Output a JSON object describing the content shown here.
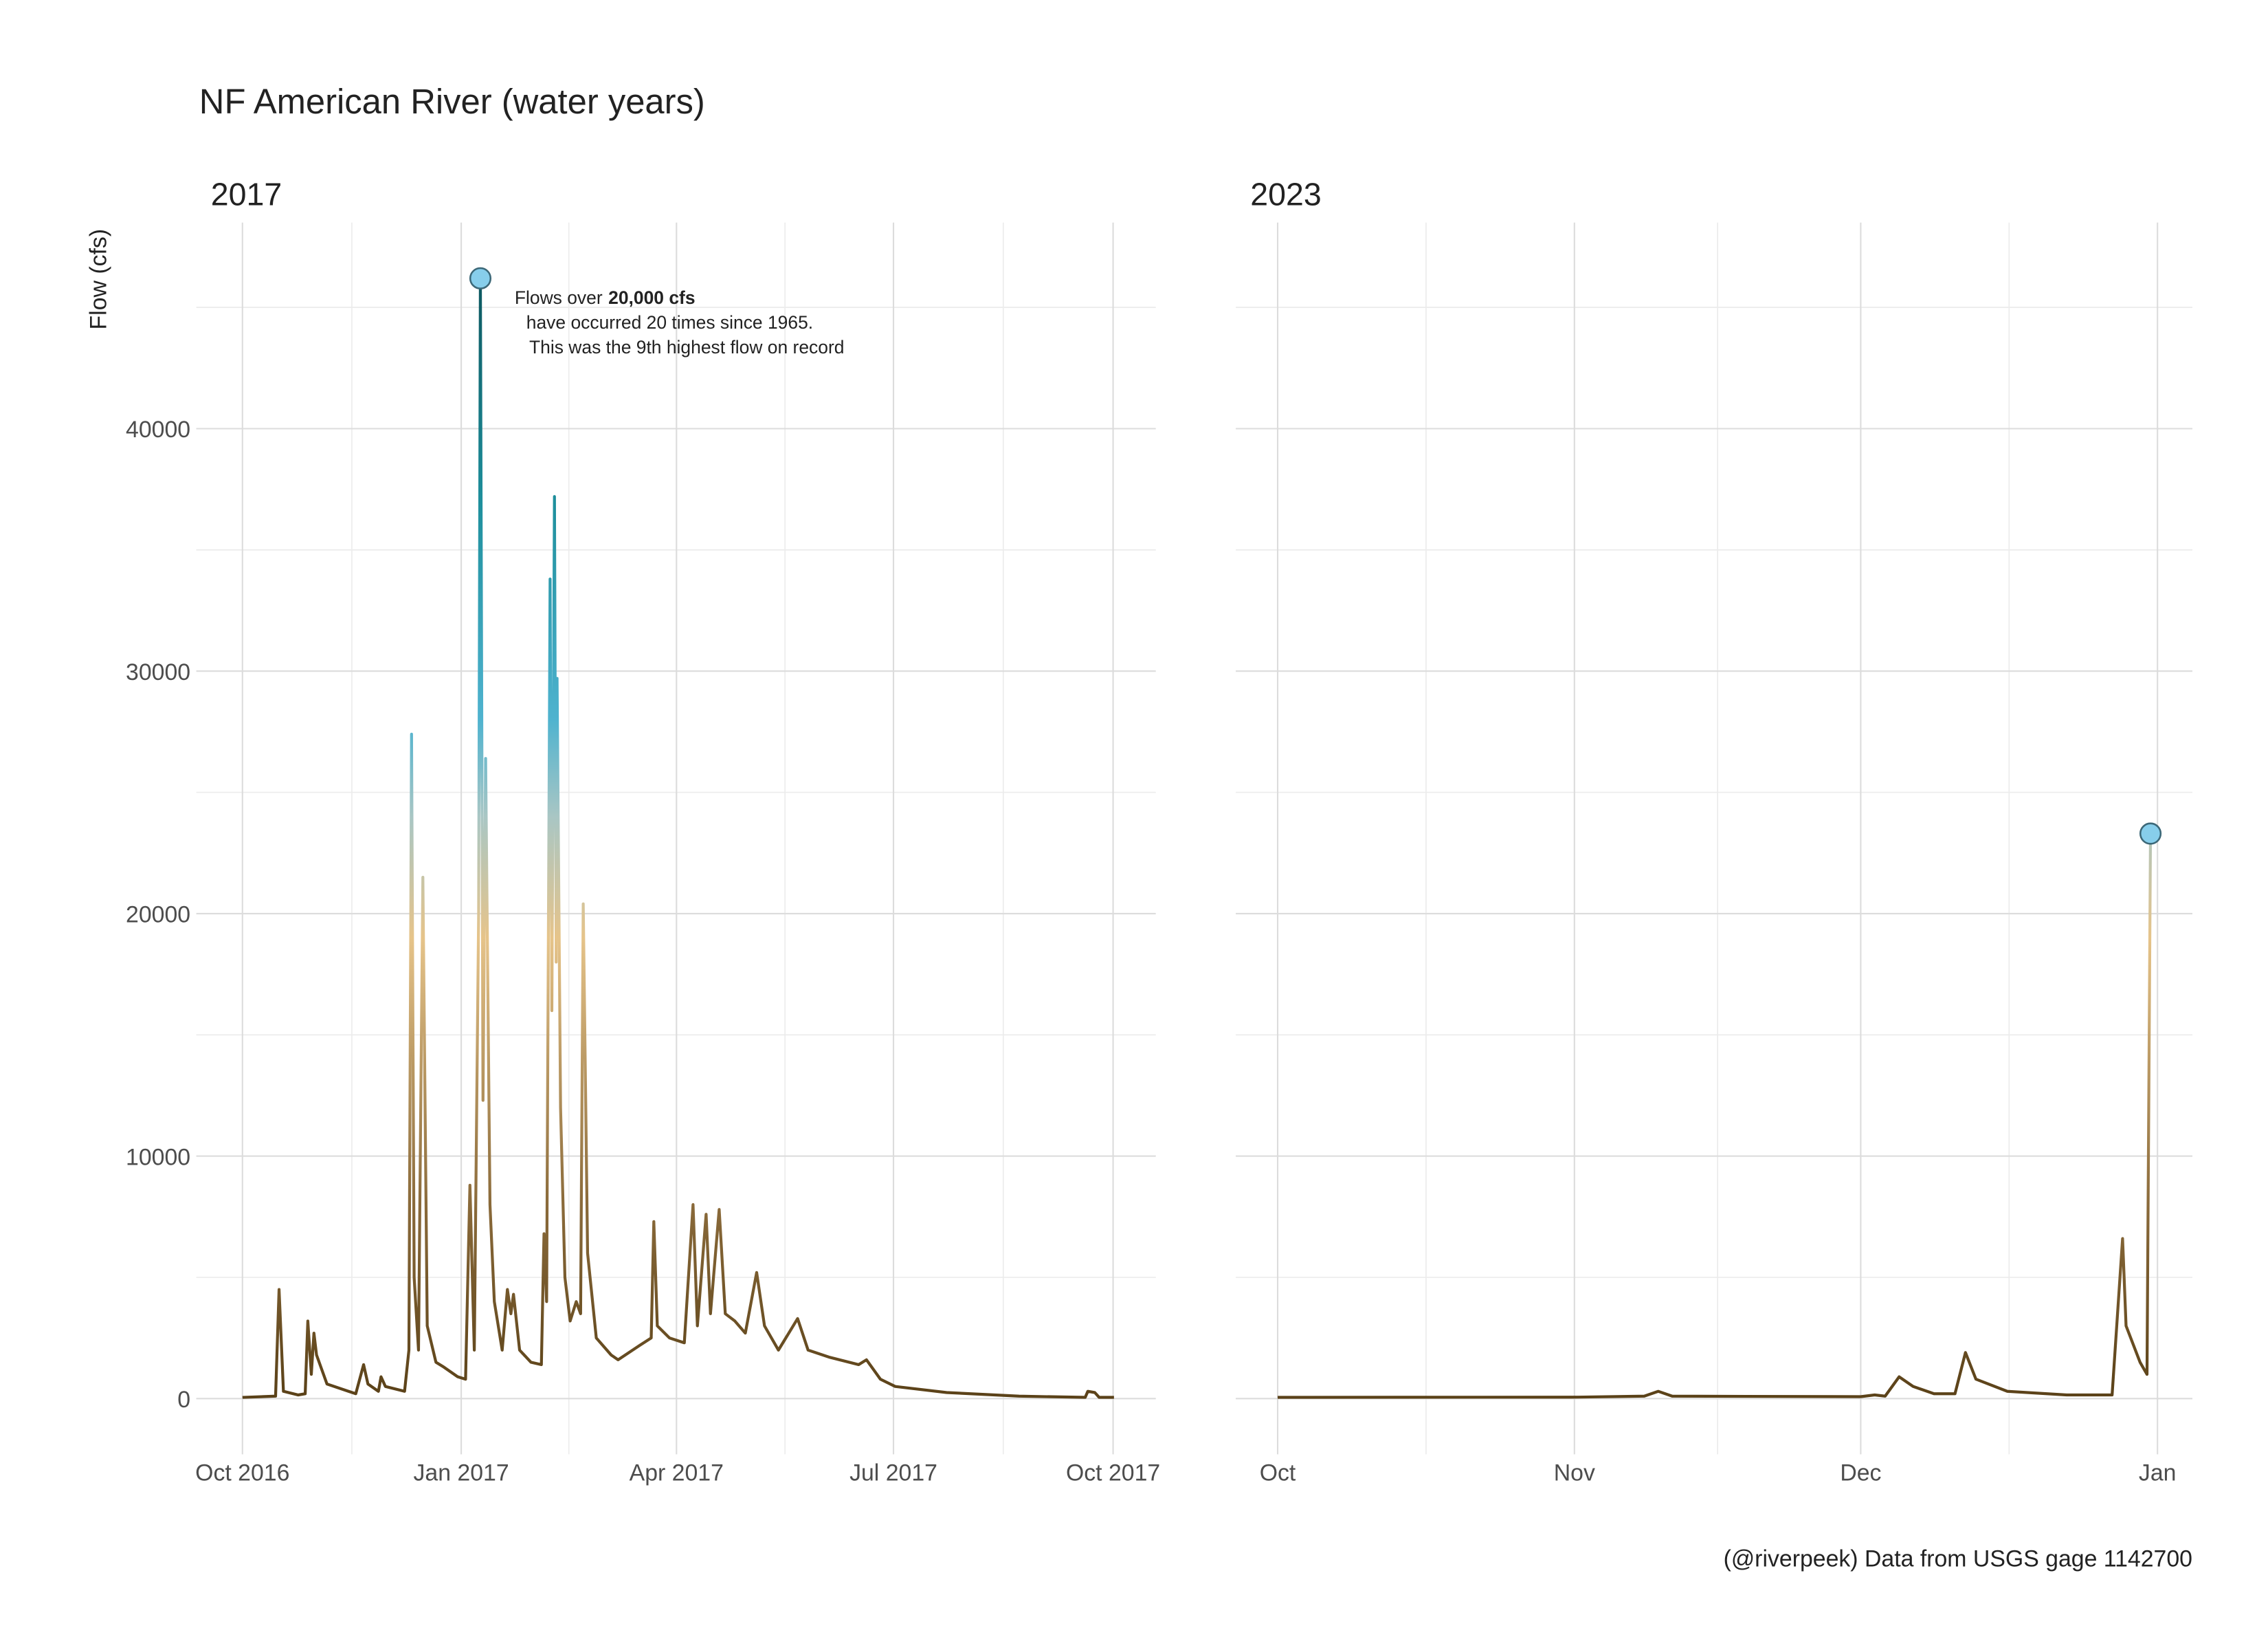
{
  "header": {
    "title": "NF American River (water years)",
    "y_label": "Flow (cfs)",
    "caption": "(@riverpeek) Data from USGS gage 1142700"
  },
  "chart_data": [
    {
      "type": "line",
      "title": "2017",
      "x": [
        2016.749,
        2016.787,
        2016.791,
        2016.796,
        2016.813,
        2016.821,
        2016.824,
        2016.828,
        2016.831,
        2016.834,
        2016.846,
        2016.879,
        2016.888,
        2016.893,
        2016.905,
        2016.908,
        2016.913,
        2016.935,
        2016.94,
        2016.943,
        2016.946,
        2016.951,
        2016.956,
        2016.961,
        2016.971,
        2016.98,
        2016.996,
        2017.005,
        2017.01,
        2017.015,
        2017.02,
        2017.022,
        2017.025,
        2017.028,
        2017.033,
        2017.038,
        2017.047,
        2017.053,
        2017.057,
        2017.06,
        2017.067,
        2017.08,
        2017.092,
        2017.095,
        2017.098,
        2017.102,
        2017.104,
        2017.107,
        2017.109,
        2017.11,
        2017.114,
        2017.119,
        2017.125,
        2017.132,
        2017.137,
        2017.14,
        2017.145,
        2017.155,
        2017.172,
        2017.18,
        2017.205,
        2017.218,
        2017.221,
        2017.225,
        2017.239,
        2017.256,
        2017.266,
        2017.271,
        2017.281,
        2017.286,
        2017.296,
        2017.303,
        2017.314,
        2017.326,
        2017.339,
        2017.348,
        2017.364,
        2017.386,
        2017.398,
        2017.423,
        2017.456,
        2017.465,
        2017.481,
        2017.498,
        2017.557,
        2017.64,
        2017.716,
        2017.719,
        2017.727,
        2017.732,
        2017.749
      ],
      "values": [
        50,
        100,
        4500,
        300,
        150,
        200,
        3200,
        1000,
        2700,
        1800,
        600,
        200,
        1400,
        600,
        300,
        900,
        500,
        300,
        2000,
        27400,
        5000,
        2000,
        21500,
        3000,
        1500,
        1300,
        900,
        800,
        8800,
        2000,
        20000,
        46200,
        12300,
        26400,
        8000,
        4000,
        2000,
        4500,
        3500,
        4300,
        2000,
        1500,
        1400,
        6800,
        4000,
        33800,
        16000,
        37200,
        18000,
        29700,
        12000,
        5000,
        3200,
        4000,
        3500,
        20400,
        6000,
        2500,
        1800,
        1600,
        2200,
        2500,
        7300,
        3000,
        2500,
        2300,
        8000,
        3000,
        7600,
        3500,
        7800,
        3500,
        3200,
        2700,
        5200,
        3000,
        2000,
        3300,
        2000,
        1700,
        1400,
        1600,
        800,
        500,
        250,
        100,
        50,
        300,
        250,
        50,
        50
      ],
      "xlim": [
        2016.696,
        2017.797
      ],
      "ylim": [
        -2300,
        48500
      ],
      "xticks": [
        {
          "value": 2016.749,
          "label": "Oct 2016"
        },
        {
          "value": 2017.0,
          "label": "Jan 2017"
        },
        {
          "value": 2017.247,
          "label": "Apr 2017"
        },
        {
          "value": 2017.496,
          "label": "Jul 2017"
        },
        {
          "value": 2017.748,
          "label": "Oct 2017"
        }
      ],
      "yticks": [
        0,
        10000,
        20000,
        30000,
        40000
      ],
      "grid": true,
      "highlight": "max",
      "color_scale": [
        {
          "value": 0,
          "color": "#5a4118"
        },
        {
          "value": 8000,
          "color": "#8a6a3a"
        },
        {
          "value": 19000,
          "color": "#e6c48a"
        },
        {
          "value": 24000,
          "color": "#a9c6c4"
        },
        {
          "value": 28000,
          "color": "#4fb3cf"
        },
        {
          "value": 37000,
          "color": "#1e8f9c"
        },
        {
          "value": 46000,
          "color": "#0d5860"
        }
      ],
      "annotation_bold": "20,000 cfs",
      "annotation_lines": [
        "Flows over",
        "have occurred 20 times since 1965.",
        "This was the 9th highest flow on record"
      ]
    },
    {
      "type": "line",
      "title": "2023",
      "x": [
        2022.748,
        2022.834,
        2022.853,
        2022.857,
        2022.861,
        2022.915,
        2022.919,
        2022.922,
        2022.926,
        2022.93,
        2022.936,
        2022.942,
        2022.945,
        2022.948,
        2022.957,
        2022.974,
        2022.987,
        2022.99,
        2022.991,
        2022.995,
        2022.997,
        2022.998
      ],
      "values": [
        50,
        60,
        100,
        300,
        100,
        80,
        150,
        100,
        900,
        500,
        200,
        200,
        1900,
        800,
        300,
        150,
        150,
        6600,
        3000,
        1500,
        1000,
        23300
      ],
      "xlim": [
        2022.736,
        2023.01
      ],
      "ylim": [
        -2300,
        48500
      ],
      "xticks": [
        {
          "value": 2022.748,
          "label": "Oct"
        },
        {
          "value": 2022.833,
          "label": "Nov"
        },
        {
          "value": 2022.915,
          "label": "Dec"
        },
        {
          "value": 2023.0,
          "label": "Jan"
        }
      ],
      "yticks": [
        0,
        10000,
        20000,
        30000,
        40000
      ],
      "grid": true,
      "highlight": "max",
      "color_scale": [
        {
          "value": 0,
          "color": "#5a4118"
        },
        {
          "value": 8000,
          "color": "#8a6a3a"
        },
        {
          "value": 19000,
          "color": "#e6c48a"
        },
        {
          "value": 24000,
          "color": "#a9c6c4"
        },
        {
          "value": 28000,
          "color": "#4fb3cf"
        },
        {
          "value": 37000,
          "color": "#1e8f9c"
        },
        {
          "value": 46000,
          "color": "#0d5860"
        }
      ]
    }
  ]
}
